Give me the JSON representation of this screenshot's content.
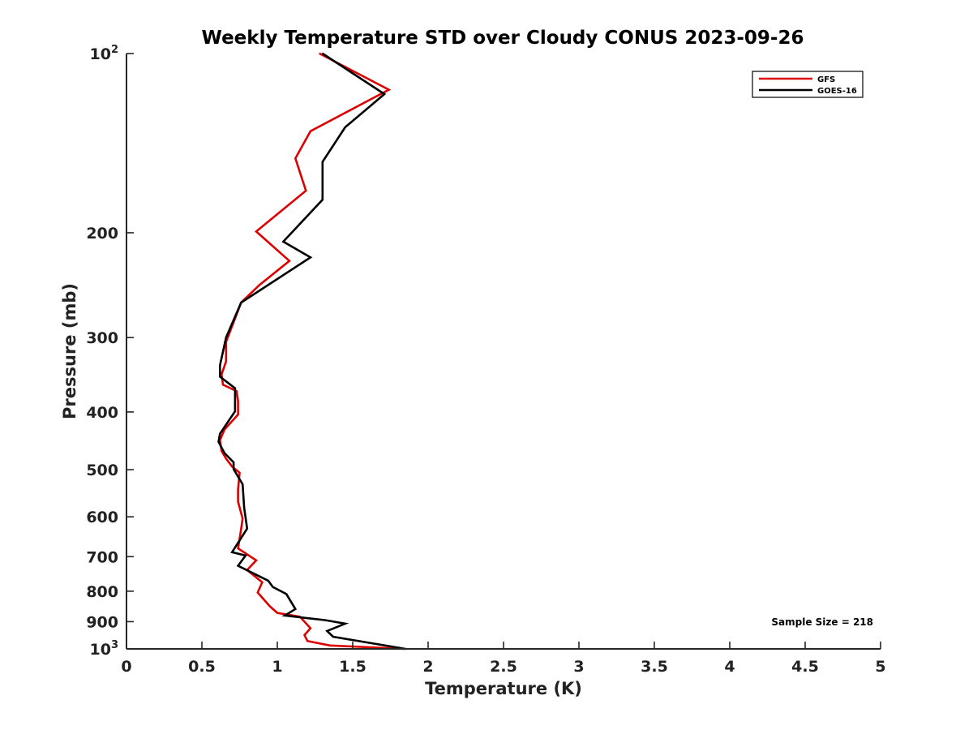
{
  "chart_data": {
    "type": "line",
    "title": "Weekly Temperature STD over Cloudy CONUS 2023-09-26",
    "xlabel": "Temperature (K)",
    "ylabel": "Pressure (mb)",
    "xlim": [
      0,
      5
    ],
    "ylim": [
      100,
      1000
    ],
    "y_scale": "log",
    "y_reversed": true,
    "grid": false,
    "legend_position": "top-right",
    "x_ticks": [
      "0",
      "0.5",
      "1",
      "1.5",
      "2",
      "2.5",
      "3",
      "3.5",
      "4",
      "4.5",
      "5"
    ],
    "y_ticks": [
      {
        "value": 100,
        "label": "10",
        "sup": "2"
      },
      {
        "value": 200,
        "label": "200"
      },
      {
        "value": 300,
        "label": "300"
      },
      {
        "value": 400,
        "label": "400"
      },
      {
        "value": 500,
        "label": "500"
      },
      {
        "value": 600,
        "label": "600"
      },
      {
        "value": 700,
        "label": "700"
      },
      {
        "value": 800,
        "label": "800"
      },
      {
        "value": 900,
        "label": "900"
      },
      {
        "value": 1000,
        "label": "10",
        "sup": "3"
      }
    ],
    "annotation": "Sample Size = 218",
    "series": [
      {
        "name": "GFS",
        "color": "#dd0000",
        "points": [
          [
            1.28,
            100
          ],
          [
            1.74,
            115
          ],
          [
            1.22,
            135
          ],
          [
            1.12,
            150
          ],
          [
            1.19,
            170
          ],
          [
            0.86,
            199
          ],
          [
            1.08,
            223
          ],
          [
            0.88,
            245
          ],
          [
            0.76,
            262
          ],
          [
            0.7,
            287
          ],
          [
            0.66,
            305
          ],
          [
            0.66,
            329
          ],
          [
            0.63,
            346
          ],
          [
            0.64,
            360
          ],
          [
            0.73,
            369
          ],
          [
            0.74,
            384
          ],
          [
            0.74,
            404
          ],
          [
            0.65,
            428
          ],
          [
            0.62,
            446
          ],
          [
            0.63,
            465
          ],
          [
            0.66,
            479
          ],
          [
            0.7,
            494
          ],
          [
            0.75,
            506
          ],
          [
            0.74,
            540
          ],
          [
            0.74,
            566
          ],
          [
            0.77,
            604
          ],
          [
            0.76,
            629
          ],
          [
            0.74,
            678
          ],
          [
            0.86,
            710
          ],
          [
            0.8,
            737
          ],
          [
            0.9,
            773
          ],
          [
            0.87,
            804
          ],
          [
            0.95,
            848
          ],
          [
            1.0,
            870
          ],
          [
            1.15,
            883
          ],
          [
            1.22,
            923
          ],
          [
            1.18,
            948
          ],
          [
            1.2,
            970
          ],
          [
            1.35,
            987
          ],
          [
            1.85,
            1000
          ]
        ]
      },
      {
        "name": "GOES-16",
        "color": "#000000",
        "points": [
          [
            1.3,
            100
          ],
          [
            1.71,
            117
          ],
          [
            1.45,
            133
          ],
          [
            1.3,
            152
          ],
          [
            1.3,
            176
          ],
          [
            1.04,
            207
          ],
          [
            1.22,
            220
          ],
          [
            0.76,
            262
          ],
          [
            0.66,
            300
          ],
          [
            0.62,
            334
          ],
          [
            0.62,
            349
          ],
          [
            0.72,
            365
          ],
          [
            0.72,
            399
          ],
          [
            0.62,
            435
          ],
          [
            0.61,
            449
          ],
          [
            0.65,
            469
          ],
          [
            0.71,
            486
          ],
          [
            0.71,
            499
          ],
          [
            0.77,
            529
          ],
          [
            0.78,
            579
          ],
          [
            0.8,
            628
          ],
          [
            0.7,
            688
          ],
          [
            0.79,
            697
          ],
          [
            0.74,
            725
          ],
          [
            0.94,
            768
          ],
          [
            0.97,
            787
          ],
          [
            1.06,
            809
          ],
          [
            1.12,
            857
          ],
          [
            1.05,
            879
          ],
          [
            1.32,
            895
          ],
          [
            1.45,
            907
          ],
          [
            1.33,
            933
          ],
          [
            1.37,
            954
          ],
          [
            1.85,
            1000
          ]
        ]
      }
    ]
  }
}
